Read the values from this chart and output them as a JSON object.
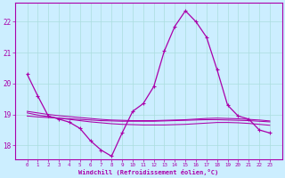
{
  "xlabel": "Windchill (Refroidissement éolien,°C)",
  "background_color": "#cceeff",
  "line_color": "#aa00aa",
  "grid_color": "#aadddd",
  "x_values": [
    0,
    1,
    2,
    3,
    4,
    5,
    6,
    7,
    8,
    9,
    10,
    11,
    12,
    13,
    14,
    15,
    16,
    17,
    18,
    19,
    20,
    21,
    22,
    23
  ],
  "series1": [
    20.3,
    19.6,
    18.95,
    18.85,
    18.75,
    18.55,
    18.15,
    17.85,
    17.65,
    18.4,
    19.1,
    19.35,
    19.9,
    21.05,
    21.85,
    22.35,
    22.0,
    21.5,
    20.45,
    19.3,
    18.95,
    18.85,
    18.5,
    18.4
  ],
  "flat1": [
    19.05,
    18.98,
    18.93,
    18.88,
    18.84,
    18.8,
    18.76,
    18.73,
    18.7,
    18.68,
    18.67,
    18.66,
    18.66,
    18.66,
    18.67,
    18.68,
    18.7,
    18.72,
    18.74,
    18.74,
    18.73,
    18.71,
    18.68,
    18.65
  ],
  "flat2": [
    18.95,
    18.92,
    18.9,
    18.88,
    18.86,
    18.84,
    18.82,
    18.8,
    18.79,
    18.78,
    18.78,
    18.78,
    18.78,
    18.79,
    18.8,
    18.81,
    18.82,
    18.83,
    18.83,
    18.82,
    18.81,
    18.8,
    18.78,
    18.76
  ],
  "flat3": [
    19.1,
    19.05,
    19.0,
    18.96,
    18.93,
    18.9,
    18.87,
    18.84,
    18.82,
    18.81,
    18.8,
    18.8,
    18.8,
    18.81,
    18.82,
    18.83,
    18.85,
    18.87,
    18.88,
    18.87,
    18.86,
    18.84,
    18.82,
    18.79
  ],
  "ylim": [
    17.55,
    22.6
  ],
  "yticks": [
    18,
    19,
    20,
    21,
    22
  ],
  "xticks": [
    0,
    1,
    2,
    3,
    4,
    5,
    6,
    7,
    8,
    9,
    10,
    11,
    12,
    13,
    14,
    15,
    16,
    17,
    18,
    19,
    20,
    21,
    22,
    23
  ]
}
